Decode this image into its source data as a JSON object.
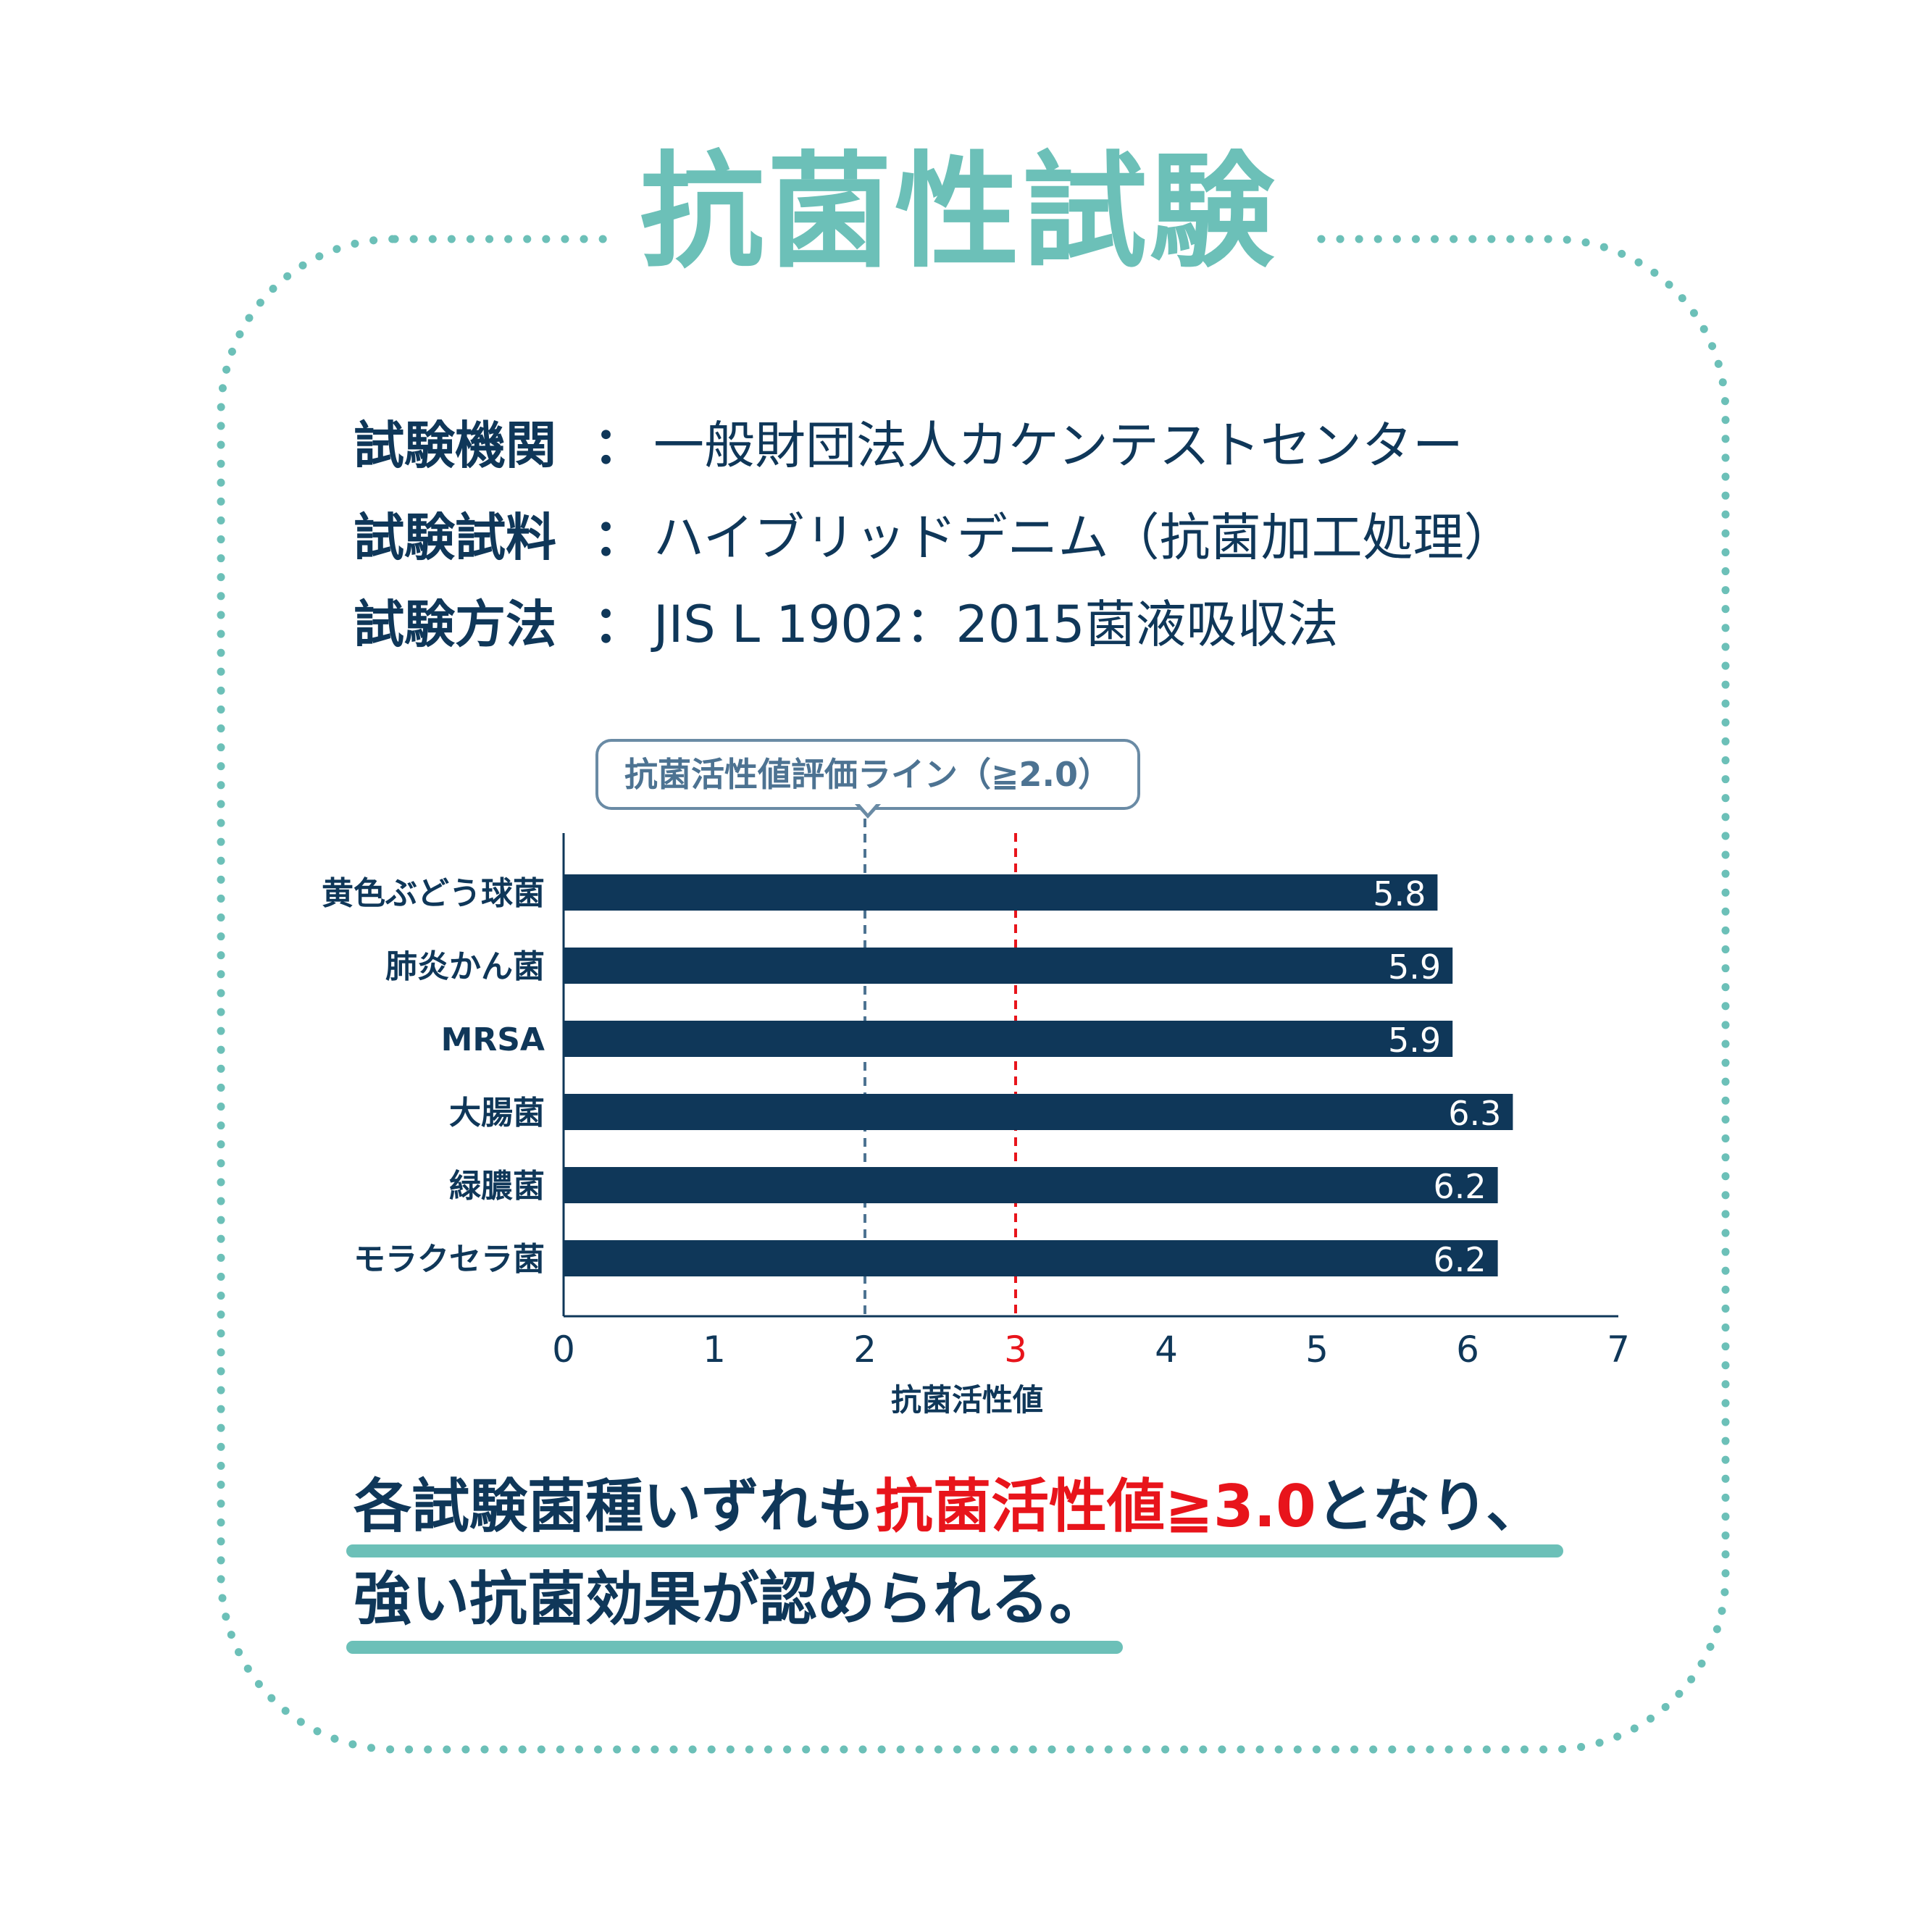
{
  "title": "抗菌性試験",
  "info": [
    {
      "label": "試験機関",
      "colon": "：",
      "value": "一般財団法人カケンテストセンター"
    },
    {
      "label": "試験試料",
      "colon": "：",
      "value": "ハイブリッドデニム（抗菌加工処理）"
    },
    {
      "label": "試験方法",
      "colon": "：",
      "value": "JIS L 1902：2015菌液吸収法"
    }
  ],
  "callout": "抗菌活性値評価ライン（≧2.0）",
  "colors": {
    "accent": "#6cc0b8",
    "navy": "#0f3759",
    "red": "#e8141b",
    "guide": "#4d7392"
  },
  "chart_data": {
    "type": "bar",
    "orientation": "horizontal",
    "categories": [
      "黄色ぶどう球菌",
      "肺炎かん菌",
      "MRSA",
      "大腸菌",
      "緑膿菌",
      "モラクセラ菌"
    ],
    "values": [
      5.8,
      5.9,
      5.9,
      6.3,
      6.2,
      6.2
    ],
    "value_labels": [
      "5.8",
      "5.9",
      "5.9",
      "6.3",
      "6.2",
      "6.2"
    ],
    "xlabel": "抗菌活性値",
    "xlim": [
      0,
      7
    ],
    "xticks": [
      "0",
      "1",
      "2",
      "3",
      "4",
      "5",
      "6",
      "7"
    ],
    "highlight_tick": "3",
    "reference_lines": [
      {
        "value": 2,
        "style": "dashed",
        "color": "#4d7392"
      },
      {
        "value": 3,
        "style": "dashed",
        "color": "#e8141b"
      }
    ],
    "bar_color": "#0f3759",
    "grid": false
  },
  "conclusion": {
    "line1_a": "各試験菌種いずれも",
    "line1_b": "抗菌活性値≧3.0",
    "line1_c": "となり、",
    "line2": "強い抗菌効果が認められる。"
  }
}
